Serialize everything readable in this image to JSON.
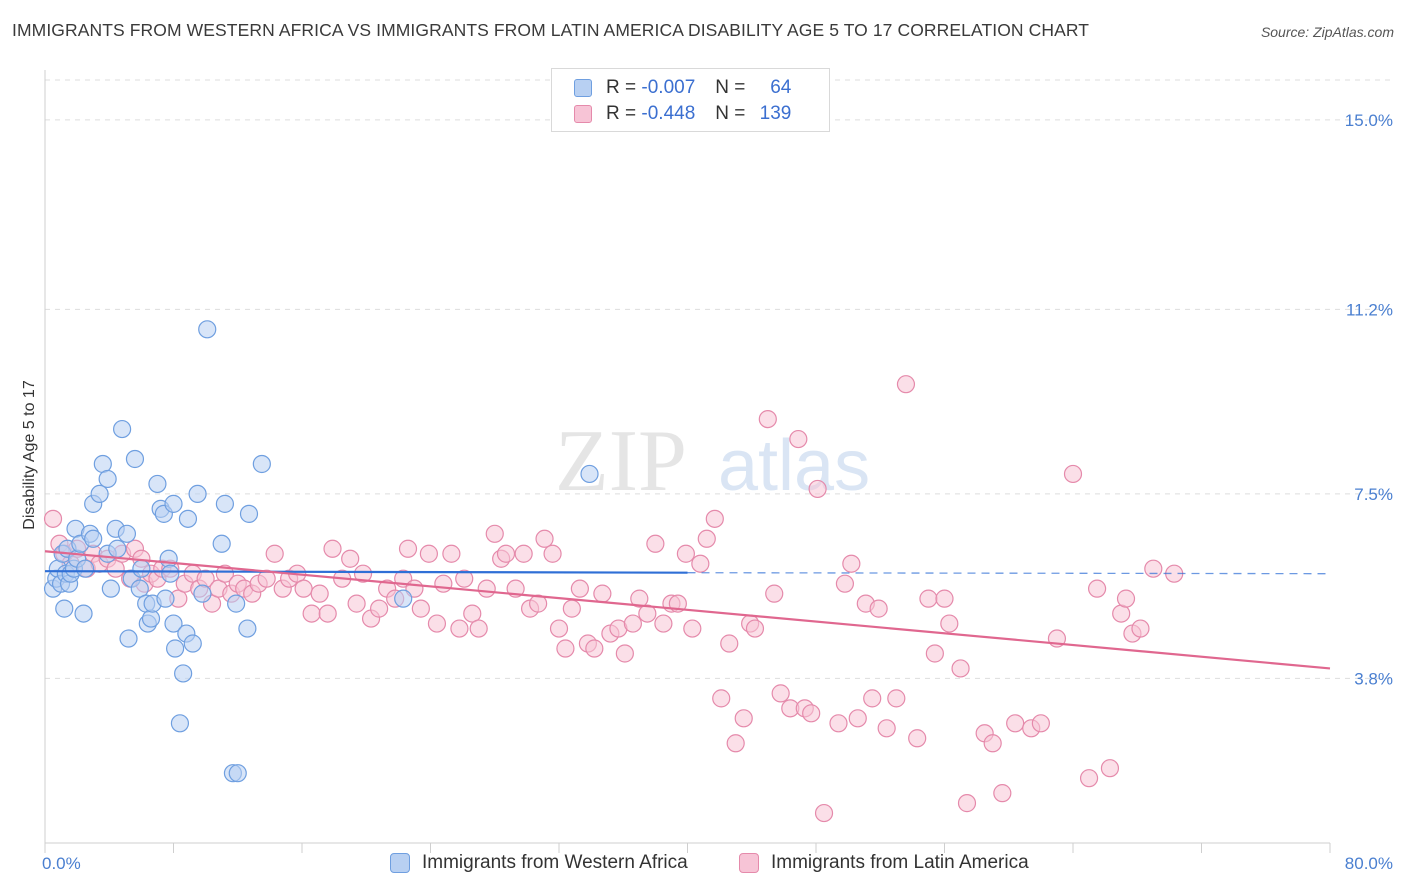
{
  "title": "IMMIGRANTS FROM WESTERN AFRICA VS IMMIGRANTS FROM LATIN AMERICA DISABILITY AGE 5 TO 17 CORRELATION CHART",
  "source": "Source: ZipAtlas.com",
  "watermark": {
    "zip": "ZIP",
    "atlas": "atlas"
  },
  "colors": {
    "blue_fill": "#b8d0f2",
    "blue_stroke": "#6f9fe0",
    "blue_line": "#2f6fd6",
    "pink_fill": "#f7c4d6",
    "pink_stroke": "#e58aab",
    "pink_line": "#e0678f",
    "grid": "#dddddd",
    "axis_text": "#4a7fd0"
  },
  "legend": {
    "rows": [
      {
        "r_label": "R =",
        "r_value": "-0.007",
        "n_label": "N =",
        "n_value": "64"
      },
      {
        "r_label": "R =",
        "r_value": "-0.448",
        "n_label": "N =",
        "n_value": "139"
      }
    ]
  },
  "bottom_legend": [
    "Immigrants from Western Africa",
    "Immigrants from Latin America"
  ],
  "chart_data": {
    "type": "scatter",
    "xlabel": "",
    "ylabel": "Disability Age 5 to 17",
    "xlim": [
      0,
      80
    ],
    "ylim": [
      0.5,
      16.0
    ],
    "x_tick_labels": [
      "0.0%",
      "80.0%"
    ],
    "y_ticks": [
      3.8,
      7.5,
      11.2,
      15.0
    ],
    "y_tick_labels": [
      "3.8%",
      "7.5%",
      "11.2%",
      "15.0%"
    ],
    "grid": true,
    "legend_position": "top-center",
    "series": [
      {
        "name": "Immigrants from Western Africa",
        "r": -0.007,
        "n": 64,
        "trend": {
          "x": [
            0,
            40
          ],
          "y": [
            5.95,
            5.92
          ],
          "dashed_to": [
            80,
            5.9
          ]
        },
        "points": [
          [
            0.5,
            5.6
          ],
          [
            0.7,
            5.8
          ],
          [
            0.8,
            6.0
          ],
          [
            1.0,
            5.7
          ],
          [
            1.1,
            6.3
          ],
          [
            1.2,
            5.2
          ],
          [
            1.3,
            5.9
          ],
          [
            1.4,
            6.4
          ],
          [
            1.5,
            5.7
          ],
          [
            1.6,
            5.9
          ],
          [
            1.8,
            6.0
          ],
          [
            1.9,
            6.8
          ],
          [
            2.0,
            6.2
          ],
          [
            2.2,
            6.5
          ],
          [
            2.4,
            5.1
          ],
          [
            2.5,
            6.0
          ],
          [
            2.8,
            6.7
          ],
          [
            3.0,
            7.3
          ],
          [
            3.0,
            6.6
          ],
          [
            3.4,
            7.5
          ],
          [
            3.6,
            8.1
          ],
          [
            3.9,
            7.8
          ],
          [
            3.9,
            6.3
          ],
          [
            4.1,
            5.6
          ],
          [
            4.4,
            6.8
          ],
          [
            4.5,
            6.4
          ],
          [
            4.8,
            8.8
          ],
          [
            5.1,
            6.7
          ],
          [
            5.2,
            4.6
          ],
          [
            5.4,
            5.8
          ],
          [
            5.6,
            8.2
          ],
          [
            5.9,
            5.6
          ],
          [
            6.0,
            6.0
          ],
          [
            6.3,
            5.3
          ],
          [
            6.4,
            4.9
          ],
          [
            6.6,
            5.0
          ],
          [
            6.7,
            5.3
          ],
          [
            7.0,
            7.7
          ],
          [
            7.2,
            7.2
          ],
          [
            7.4,
            7.1
          ],
          [
            7.5,
            5.4
          ],
          [
            7.7,
            6.2
          ],
          [
            7.8,
            5.9
          ],
          [
            8.0,
            7.3
          ],
          [
            8.0,
            4.9
          ],
          [
            8.1,
            4.4
          ],
          [
            8.4,
            2.9
          ],
          [
            8.6,
            3.9
          ],
          [
            8.8,
            4.7
          ],
          [
            8.9,
            7.0
          ],
          [
            9.2,
            4.5
          ],
          [
            9.5,
            7.5
          ],
          [
            9.8,
            5.5
          ],
          [
            10.1,
            10.8
          ],
          [
            11.0,
            6.5
          ],
          [
            11.2,
            7.3
          ],
          [
            11.7,
            1.9
          ],
          [
            11.9,
            5.3
          ],
          [
            12.0,
            1.9
          ],
          [
            12.6,
            4.8
          ],
          [
            12.7,
            7.1
          ],
          [
            13.5,
            8.1
          ],
          [
            22.3,
            5.4
          ],
          [
            33.9,
            7.9
          ]
        ]
      },
      {
        "name": "Immigrants from Latin America",
        "r": -0.448,
        "n": 139,
        "trend": {
          "x": [
            0,
            80
          ],
          "y": [
            6.35,
            4.0
          ]
        },
        "points": [
          [
            0.5,
            7.0
          ],
          [
            0.9,
            6.5
          ],
          [
            1.2,
            6.3
          ],
          [
            1.6,
            6.1
          ],
          [
            2.0,
            6.4
          ],
          [
            2.6,
            6.0
          ],
          [
            3.0,
            6.3
          ],
          [
            3.4,
            6.1
          ],
          [
            3.9,
            6.2
          ],
          [
            4.4,
            6.0
          ],
          [
            4.8,
            6.3
          ],
          [
            5.3,
            5.8
          ],
          [
            5.6,
            6.4
          ],
          [
            6.0,
            6.2
          ],
          [
            6.2,
            5.7
          ],
          [
            6.6,
            5.9
          ],
          [
            7.0,
            5.8
          ],
          [
            7.3,
            6.0
          ],
          [
            7.8,
            6.0
          ],
          [
            8.3,
            5.4
          ],
          [
            8.7,
            5.7
          ],
          [
            9.2,
            5.9
          ],
          [
            9.6,
            5.6
          ],
          [
            10.0,
            5.8
          ],
          [
            10.4,
            5.3
          ],
          [
            10.8,
            5.6
          ],
          [
            11.2,
            5.9
          ],
          [
            11.6,
            5.5
          ],
          [
            12.0,
            5.7
          ],
          [
            12.4,
            5.6
          ],
          [
            12.9,
            5.5
          ],
          [
            13.3,
            5.7
          ],
          [
            13.8,
            5.8
          ],
          [
            14.3,
            6.3
          ],
          [
            14.8,
            5.6
          ],
          [
            15.2,
            5.8
          ],
          [
            15.7,
            5.9
          ],
          [
            16.1,
            5.6
          ],
          [
            16.6,
            5.1
          ],
          [
            17.1,
            5.5
          ],
          [
            17.6,
            5.1
          ],
          [
            17.9,
            6.4
          ],
          [
            18.5,
            5.8
          ],
          [
            19.0,
            6.2
          ],
          [
            19.4,
            5.3
          ],
          [
            19.8,
            5.9
          ],
          [
            20.3,
            5.0
          ],
          [
            20.8,
            5.2
          ],
          [
            21.3,
            5.6
          ],
          [
            21.8,
            5.4
          ],
          [
            22.3,
            5.8
          ],
          [
            22.6,
            6.4
          ],
          [
            23.0,
            5.6
          ],
          [
            23.4,
            5.2
          ],
          [
            23.9,
            6.3
          ],
          [
            24.4,
            4.9
          ],
          [
            24.8,
            5.7
          ],
          [
            25.3,
            6.3
          ],
          [
            25.8,
            4.8
          ],
          [
            26.1,
            5.8
          ],
          [
            26.6,
            5.1
          ],
          [
            27.0,
            4.8
          ],
          [
            27.5,
            5.6
          ],
          [
            28.0,
            6.7
          ],
          [
            28.4,
            6.2
          ],
          [
            28.7,
            6.3
          ],
          [
            29.3,
            5.6
          ],
          [
            29.8,
            6.3
          ],
          [
            30.2,
            5.2
          ],
          [
            30.7,
            5.3
          ],
          [
            31.1,
            6.6
          ],
          [
            31.6,
            6.3
          ],
          [
            32.0,
            4.8
          ],
          [
            32.4,
            4.4
          ],
          [
            32.8,
            5.2
          ],
          [
            33.3,
            5.6
          ],
          [
            33.8,
            4.5
          ],
          [
            34.2,
            4.4
          ],
          [
            34.7,
            5.5
          ],
          [
            35.2,
            4.7
          ],
          [
            35.7,
            4.8
          ],
          [
            36.1,
            4.3
          ],
          [
            36.6,
            4.9
          ],
          [
            37.0,
            5.4
          ],
          [
            37.5,
            5.1
          ],
          [
            38.0,
            6.5
          ],
          [
            38.5,
            4.9
          ],
          [
            39.0,
            5.3
          ],
          [
            39.4,
            5.3
          ],
          [
            39.9,
            6.3
          ],
          [
            40.3,
            4.8
          ],
          [
            40.8,
            6.1
          ],
          [
            41.2,
            6.6
          ],
          [
            41.7,
            7.0
          ],
          [
            42.1,
            3.4
          ],
          [
            42.6,
            4.5
          ],
          [
            43.0,
            2.5
          ],
          [
            43.5,
            3.0
          ],
          [
            43.9,
            4.9
          ],
          [
            44.2,
            4.8
          ],
          [
            45.0,
            9.0
          ],
          [
            45.4,
            5.5
          ],
          [
            45.8,
            3.5
          ],
          [
            46.4,
            3.2
          ],
          [
            46.9,
            8.6
          ],
          [
            47.3,
            3.2
          ],
          [
            47.7,
            3.1
          ],
          [
            48.1,
            7.6
          ],
          [
            48.5,
            1.1
          ],
          [
            49.4,
            2.9
          ],
          [
            49.8,
            5.7
          ],
          [
            50.2,
            6.1
          ],
          [
            50.6,
            3.0
          ],
          [
            51.1,
            5.3
          ],
          [
            51.5,
            3.4
          ],
          [
            51.9,
            5.2
          ],
          [
            52.4,
            2.8
          ],
          [
            53.0,
            3.4
          ],
          [
            53.6,
            9.7
          ],
          [
            54.3,
            2.6
          ],
          [
            55.0,
            5.4
          ],
          [
            55.4,
            4.3
          ],
          [
            56.0,
            5.4
          ],
          [
            56.3,
            4.9
          ],
          [
            57.0,
            4.0
          ],
          [
            57.4,
            1.3
          ],
          [
            58.5,
            2.7
          ],
          [
            59.0,
            2.5
          ],
          [
            59.6,
            1.5
          ],
          [
            60.4,
            2.9
          ],
          [
            61.4,
            2.8
          ],
          [
            62.0,
            2.9
          ],
          [
            63.0,
            4.6
          ],
          [
            64.0,
            7.9
          ],
          [
            65.0,
            1.8
          ],
          [
            65.5,
            5.6
          ],
          [
            66.3,
            2.0
          ],
          [
            67.0,
            5.1
          ],
          [
            67.3,
            5.4
          ],
          [
            67.7,
            4.7
          ],
          [
            68.2,
            4.8
          ],
          [
            69.0,
            6.0
          ],
          [
            70.3,
            5.9
          ]
        ]
      }
    ]
  }
}
